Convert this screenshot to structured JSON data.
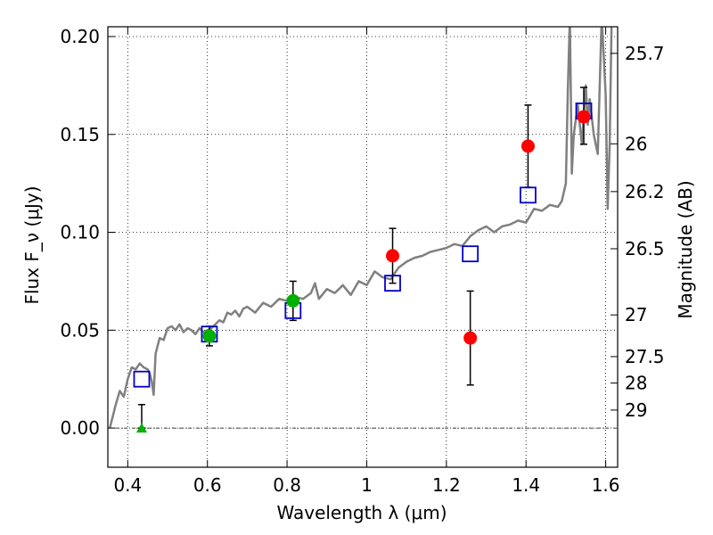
{
  "chart_data": {
    "type": "scatter",
    "xlabel": "Wavelength λ (μm)",
    "ylabel": "Flux F_ν (μJy)",
    "y2label": "Magnitude (AB)",
    "xlim": [
      0.35,
      1.63
    ],
    "ylim": [
      -0.02,
      0.205
    ],
    "grid": true,
    "x_ticks": [
      0.4,
      0.6,
      0.8,
      1.0,
      1.2,
      1.4,
      1.6
    ],
    "x_tick_labels": [
      "0.4",
      "0.6",
      "0.8",
      "1",
      "1.2",
      "1.4",
      "1.6"
    ],
    "y_ticks": [
      0.0,
      0.05,
      0.1,
      0.15,
      0.2
    ],
    "y_tick_labels": [
      "0.00",
      "0.05",
      "0.10",
      "0.15",
      "0.20"
    ],
    "y2_ticks": [
      {
        "label": "25.7",
        "flux": 0.1914
      },
      {
        "label": "26",
        "flux": 0.1452
      },
      {
        "label": "26.2",
        "flux": 0.1208
      },
      {
        "label": "26.5",
        "flux": 0.0916
      },
      {
        "label": "27",
        "flux": 0.0578
      },
      {
        "label": "27.5",
        "flux": 0.0365
      },
      {
        "label": "28",
        "flux": 0.023
      },
      {
        "label": "29",
        "flux": 0.0092
      }
    ],
    "colors": {
      "model": "#808080",
      "photometry": "#ff0000",
      "secondary": "#00b000",
      "model_points": "#0000cc",
      "error_bars": "#000000"
    },
    "model_spectrum": {
      "x": [
        0.355,
        0.37,
        0.38,
        0.39,
        0.4,
        0.41,
        0.42,
        0.43,
        0.44,
        0.45,
        0.455,
        0.46,
        0.465,
        0.47,
        0.48,
        0.49,
        0.5,
        0.51,
        0.52,
        0.53,
        0.54,
        0.55,
        0.56,
        0.57,
        0.58,
        0.59,
        0.6,
        0.61,
        0.62,
        0.63,
        0.64,
        0.65,
        0.66,
        0.67,
        0.68,
        0.69,
        0.7,
        0.72,
        0.74,
        0.76,
        0.78,
        0.8,
        0.82,
        0.84,
        0.86,
        0.87,
        0.88,
        0.9,
        0.92,
        0.94,
        0.96,
        0.98,
        1.0,
        1.02,
        1.04,
        1.06,
        1.08,
        1.1,
        1.12,
        1.14,
        1.16,
        1.18,
        1.2,
        1.22,
        1.24,
        1.26,
        1.28,
        1.3,
        1.32,
        1.34,
        1.36,
        1.38,
        1.4,
        1.42,
        1.44,
        1.46,
        1.48,
        1.49,
        1.5,
        1.505,
        1.51,
        1.515,
        1.52,
        1.53,
        1.54,
        1.55,
        1.555,
        1.56,
        1.57,
        1.58,
        1.59,
        1.595,
        1.6,
        1.605,
        1.61,
        1.615,
        1.62
      ],
      "y": [
        0.0,
        0.012,
        0.019,
        0.016,
        0.025,
        0.031,
        0.03,
        0.033,
        0.031,
        0.03,
        0.028,
        0.024,
        0.017,
        0.038,
        0.046,
        0.045,
        0.051,
        0.052,
        0.05,
        0.053,
        0.049,
        0.051,
        0.05,
        0.048,
        0.051,
        0.049,
        0.05,
        0.051,
        0.053,
        0.055,
        0.054,
        0.059,
        0.058,
        0.06,
        0.057,
        0.061,
        0.062,
        0.059,
        0.064,
        0.062,
        0.066,
        0.065,
        0.067,
        0.066,
        0.069,
        0.074,
        0.066,
        0.071,
        0.069,
        0.073,
        0.068,
        0.075,
        0.073,
        0.08,
        0.077,
        0.076,
        0.082,
        0.085,
        0.087,
        0.088,
        0.09,
        0.091,
        0.092,
        0.094,
        0.093,
        0.098,
        0.101,
        0.103,
        0.1,
        0.103,
        0.104,
        0.106,
        0.105,
        0.112,
        0.111,
        0.114,
        0.113,
        0.116,
        0.125,
        0.172,
        0.21,
        0.13,
        0.15,
        0.165,
        0.145,
        0.175,
        0.155,
        0.168,
        0.15,
        0.14,
        0.21,
        0.19,
        0.17,
        0.112,
        0.145,
        0.21,
        0.21
      ]
    },
    "model_points": {
      "x": [
        0.435,
        0.605,
        0.815,
        1.065,
        1.26,
        1.405,
        1.545
      ],
      "y": [
        0.025,
        0.048,
        0.06,
        0.074,
        0.089,
        0.119,
        0.162
      ]
    },
    "photometry": {
      "x": [
        1.065,
        1.26,
        1.405,
        1.545
      ],
      "y": [
        0.088,
        0.046,
        0.144,
        0.159
      ],
      "err_low": [
        0.074,
        0.022,
        0.123,
        0.145
      ],
      "err_high": [
        0.102,
        0.07,
        0.165,
        0.174
      ]
    },
    "secondary_points": {
      "x": [
        0.605,
        0.815
      ],
      "y": [
        0.047,
        0.065
      ],
      "err_low": [
        0.042,
        0.055
      ],
      "err_high": [
        0.052,
        0.075
      ]
    },
    "upper_limit": {
      "x": 0.435,
      "y": 0.0,
      "err_high": 0.012
    }
  }
}
